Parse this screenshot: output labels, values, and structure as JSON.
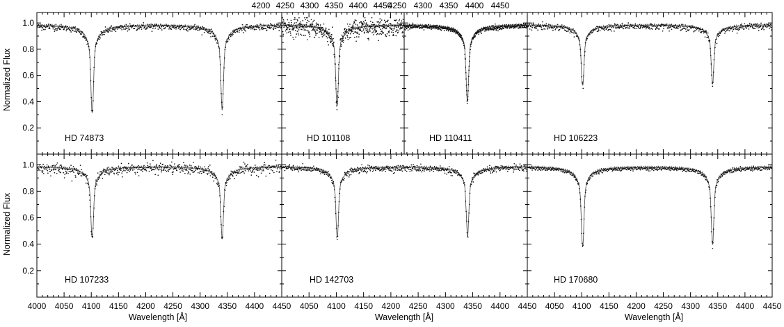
{
  "chart_data": {
    "type": "line",
    "ylabel": "Normalized Flux",
    "xlabel": "Wavelength [Å]",
    "ylim": [
      0,
      1.08
    ],
    "yticks": [
      "0.2",
      "0.4",
      "0.6",
      "0.8",
      "1.0"
    ],
    "legend": "none",
    "grid": false,
    "colors": {
      "observed": "#111111",
      "model": "#555555"
    },
    "line_centers": [
      4101.7,
      4340.5
    ],
    "panels": [
      {
        "label": "HD 74873",
        "xlim": [
          4000,
          4450
        ],
        "tick_axis": "none",
        "xticks": [],
        "line_depths": [
          0.21,
          0.24
        ],
        "noise": 0.012
      },
      {
        "label": "HD 101108",
        "xlim": [
          4000,
          4225
        ],
        "tick_axis": "top",
        "xticks": [
          "4200",
          "4250",
          "4300",
          "4350",
          "4400",
          "4450"
        ],
        "line_depths": [
          0.27,
          0.27
        ],
        "noise": 0.035
      },
      {
        "label": "HD 110411",
        "xlim": [
          4225,
          4450
        ],
        "tick_axis": "top",
        "xticks": [
          "4250",
          "4300",
          "4350",
          "4400",
          "4450"
        ],
        "line_depths": [
          0.32,
          0.32
        ],
        "noise": 0.008
      },
      {
        "label": "HD 106223",
        "xlim": [
          4000,
          4450
        ],
        "tick_axis": "none",
        "xticks": [],
        "line_depths": [
          0.45,
          0.47
        ],
        "noise": 0.012
      },
      {
        "label": "HD 107233",
        "xlim": [
          4000,
          4450
        ],
        "tick_axis": "bottom",
        "xticks": [
          "4000",
          "4050",
          "4100",
          "4150",
          "4200",
          "4250",
          "4300",
          "4350",
          "4400",
          "4450"
        ],
        "line_depths": [
          0.36,
          0.36
        ],
        "noise": 0.02
      },
      {
        "label": "HD 142703",
        "xlim": [
          4000,
          4450
        ],
        "tick_axis": "bottom",
        "xticks": [
          "4050",
          "4100",
          "4150",
          "4200",
          "4250",
          "4300",
          "4350",
          "4400",
          "4450"
        ],
        "line_depths": [
          0.37,
          0.39
        ],
        "noise": 0.012
      },
      {
        "label": "HD 170680",
        "xlim": [
          4000,
          4450
        ],
        "tick_axis": "bottom",
        "xticks": [
          "4050",
          "4100",
          "4150",
          "4200",
          "4250",
          "4300",
          "4350",
          "4400",
          "4450"
        ],
        "line_depths": [
          0.29,
          0.31
        ],
        "noise": 0.006
      }
    ]
  }
}
